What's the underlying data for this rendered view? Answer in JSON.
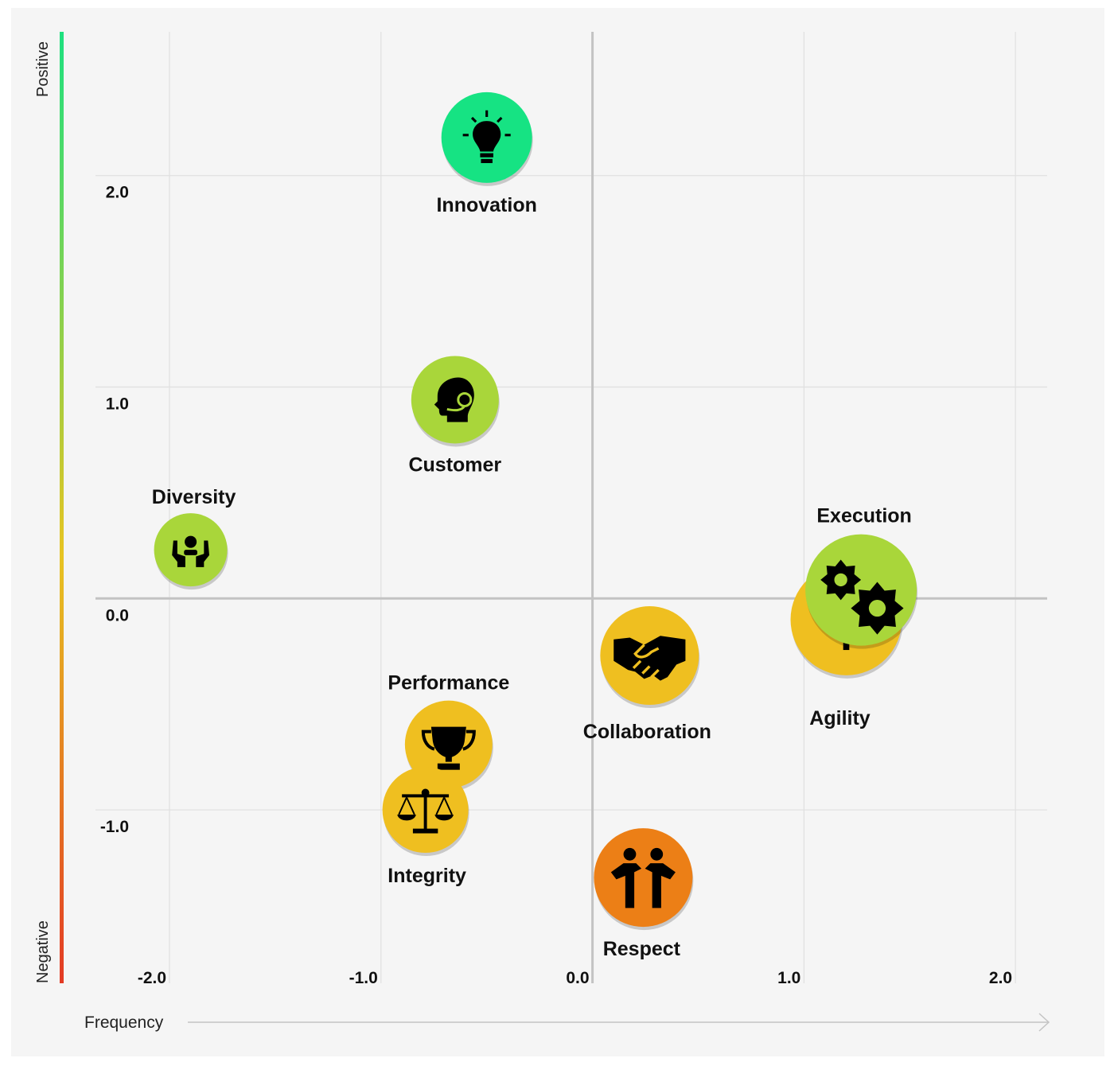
{
  "chart_data": {
    "type": "scatter",
    "xlabel": "Frequency",
    "y_top_label": "Positive",
    "y_bottom_label": "Negative",
    "xlim": [
      -2.35,
      2.15
    ],
    "ylim": [
      -1.82,
      2.68
    ],
    "x_ticks": [
      -2.0,
      -1.0,
      0.0,
      1.0,
      2.0
    ],
    "y_ticks": [
      2.0,
      1.0,
      0.0,
      -1.0
    ],
    "x_tick_labels": [
      "-2.0",
      "-1.0",
      "0.0",
      "1.0",
      "2.0"
    ],
    "y_tick_labels": [
      "2.0",
      "1.0",
      "0.0",
      "-1.0"
    ],
    "grid": true,
    "gradient": {
      "top": "#1ee07f",
      "middle": "#e7c422",
      "bottom": "#e33a24"
    },
    "points": [
      {
        "name": "Innovation",
        "x": -0.5,
        "y": 2.18,
        "color": "#16e383",
        "icon": "lightbulb-icon",
        "label_pos": "below"
      },
      {
        "name": "Customer",
        "x": -0.65,
        "y": 0.94,
        "color": "#a9d63a",
        "icon": "headset-person-icon",
        "label_pos": "below"
      },
      {
        "name": "Diversity",
        "x": -1.9,
        "y": 0.23,
        "color": "#a9d63a",
        "icon": "diversity-hands-icon",
        "label_pos": "above"
      },
      {
        "name": "Execution",
        "x": 1.27,
        "y": 0.04,
        "color": "#a9d63a",
        "icon": "gears-icon",
        "label_pos": "above"
      },
      {
        "name": "Agility",
        "x": 1.2,
        "y": -0.1,
        "color": "#efbf20",
        "icon": "agility-icon",
        "label_pos": "below"
      },
      {
        "name": "Collaboration",
        "x": 0.27,
        "y": -0.27,
        "color": "#efbf20",
        "icon": "handshake-icon",
        "label_pos": "below"
      },
      {
        "name": "Performance",
        "x": -0.68,
        "y": -0.69,
        "color": "#efbf20",
        "icon": "trophy-icon",
        "label_pos": "above"
      },
      {
        "name": "Integrity",
        "x": -0.79,
        "y": -1.0,
        "color": "#efbf20",
        "icon": "scales-icon",
        "label_pos": "below"
      },
      {
        "name": "Respect",
        "x": 0.24,
        "y": -1.32,
        "color": "#ec7f16",
        "icon": "people-icon",
        "label_pos": "below"
      }
    ]
  }
}
